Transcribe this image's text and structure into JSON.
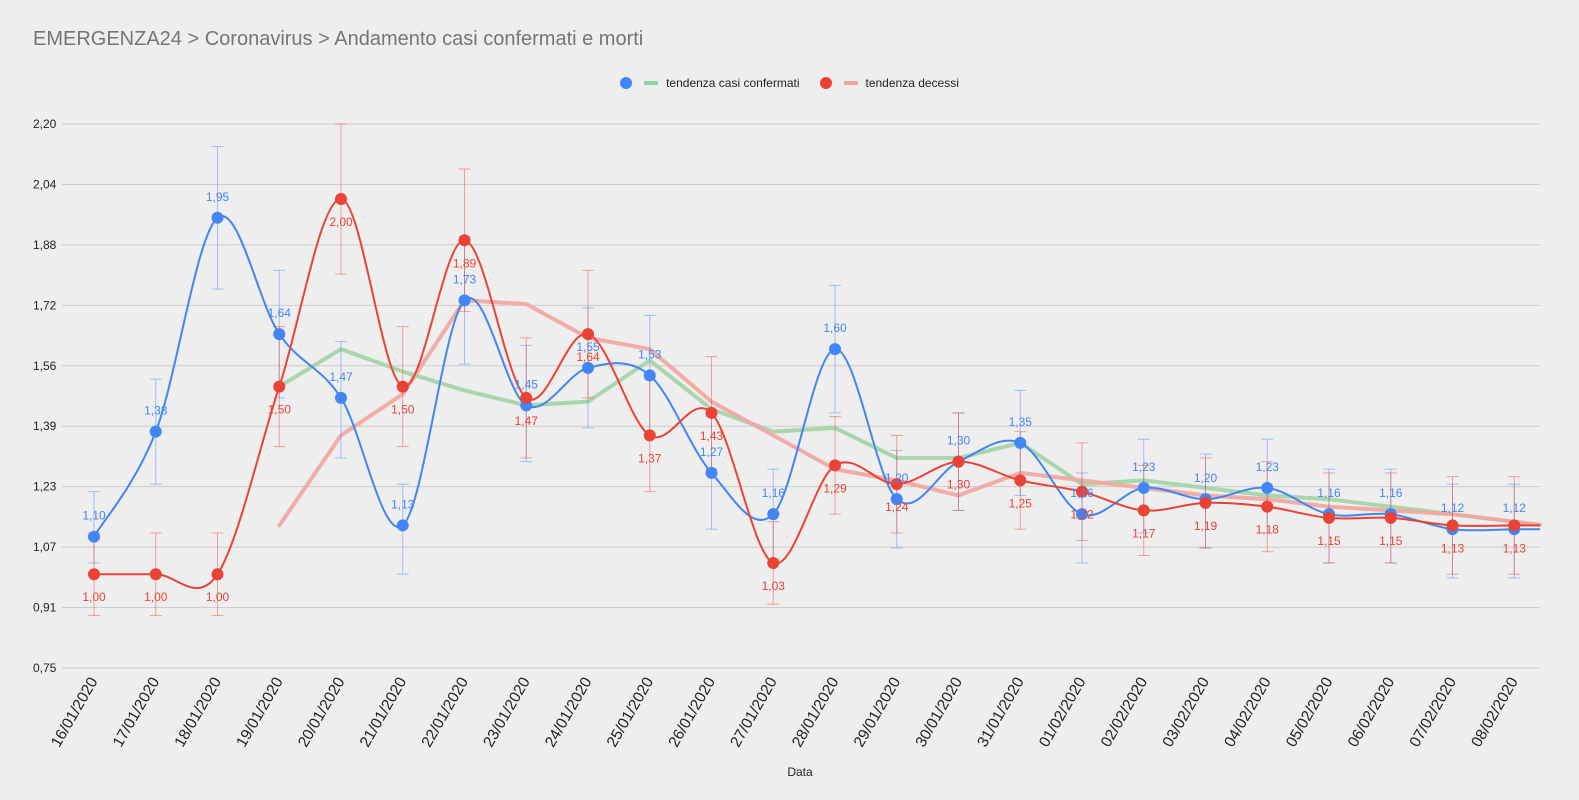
{
  "header": {
    "title": "EMERGENZA24 > Coronavirus > Andamento casi confermati e morti"
  },
  "legend": {
    "items": [
      {
        "label": "tendenza casi confermati",
        "dot_color": "#4285f4",
        "line_color": "#93cf9c"
      },
      {
        "label": "tendenza decessi",
        "dot_color": "#ea4335",
        "line_color": "#efa39c"
      }
    ]
  },
  "colors": {
    "confirmed": "#4285f4",
    "deaths": "#ea4335",
    "trend_confirmed": "#a5d4a6",
    "trend_deaths": "#f0a8a2",
    "grid": "#cccccc",
    "background": "#eeeeee"
  },
  "chart_data": {
    "type": "line",
    "title": "EMERGENZA24 > Coronavirus > Andamento casi confermati e morti",
    "xlabel": "Data",
    "ylabel": "",
    "ylim": [
      0.75,
      2.2
    ],
    "yticks": [
      "2,20",
      "2,04",
      "1,88",
      "1,72",
      "1,56",
      "1,39",
      "1,23",
      "1,07",
      "0,91",
      "0,75"
    ],
    "grid": true,
    "legend_position": "top",
    "categories": [
      "16/01/2020",
      "17/01/2020",
      "18/01/2020",
      "19/01/2020",
      "20/01/2020",
      "21/01/2020",
      "22/01/2020",
      "23/01/2020",
      "24/01/2020",
      "25/01/2020",
      "26/01/2020",
      "27/01/2020",
      "28/01/2020",
      "29/01/2020",
      "30/01/2020",
      "31/01/2020",
      "01/02/2020",
      "02/02/2020",
      "03/02/2020",
      "04/02/2020",
      "05/02/2020",
      "06/02/2020",
      "07/02/2020",
      "08/02/2020"
    ],
    "series": [
      {
        "role": "confirmed-points",
        "values": [
          1.1,
          1.38,
          1.95,
          1.64,
          1.47,
          1.13,
          1.73,
          1.45,
          1.55,
          1.53,
          1.27,
          1.16,
          1.6,
          1.2,
          1.3,
          1.35,
          1.16,
          1.23,
          1.2,
          1.23,
          1.16,
          1.16,
          1.12,
          1.12
        ],
        "labels": [
          "1,10",
          "1,38",
          "1,95",
          "1,64",
          "1,47",
          "1,13",
          "1,73",
          "1,45",
          "1,55",
          "1,53",
          "1,27",
          "1,16",
          "1,60",
          "1,20",
          "1,30",
          "1,35",
          "1,16",
          "1,23",
          "1,20",
          "1,23",
          "1,16",
          "1,16",
          "1,12",
          "1,12"
        ]
      },
      {
        "role": "deaths-points",
        "values": [
          1.0,
          1.0,
          1.0,
          1.5,
          2.0,
          1.5,
          1.89,
          1.47,
          1.64,
          1.37,
          1.43,
          1.03,
          1.29,
          1.24,
          1.3,
          1.25,
          1.22,
          1.17,
          1.19,
          1.18,
          1.15,
          1.15,
          1.13,
          1.13
        ],
        "labels": [
          "1,00",
          "1,00",
          "1,00",
          "1,50",
          "2,00",
          "1,50",
          "1,89",
          "1,47",
          "1,64",
          "1,37",
          "1,43",
          "1,03",
          "1,29",
          "1,24",
          "1,30",
          "1,25",
          "1,22",
          "1,17",
          "1,19",
          "1,18",
          "1,15",
          "1,15",
          "1,13",
          "1,13"
        ]
      },
      {
        "name": "tendenza casi confermati",
        "role": "confirmed-trend",
        "values": [
          null,
          null,
          null,
          1.5,
          1.6,
          1.54,
          1.49,
          1.45,
          1.46,
          1.57,
          1.44,
          1.38,
          1.39,
          1.31,
          1.31,
          1.35,
          1.24,
          1.25,
          1.23,
          1.21,
          1.2,
          1.18,
          1.16,
          1.14
        ]
      },
      {
        "name": "tendenza decessi",
        "role": "deaths-trend",
        "values": [
          null,
          null,
          null,
          1.13,
          1.37,
          1.48,
          1.73,
          1.72,
          1.63,
          1.6,
          1.46,
          1.37,
          1.28,
          1.25,
          1.21,
          1.27,
          1.25,
          1.23,
          1.21,
          1.2,
          1.18,
          1.17,
          1.16,
          1.14
        ]
      }
    ],
    "error_bars": {
      "confirmed": [
        [
          1.03,
          1.22
        ],
        [
          1.24,
          1.52
        ],
        [
          1.76,
          2.14
        ],
        [
          1.47,
          1.81
        ],
        [
          1.31,
          1.62
        ],
        [
          1.0,
          1.24
        ],
        [
          1.56,
          1.9
        ],
        [
          1.3,
          1.61
        ],
        [
          1.39,
          1.71
        ],
        [
          1.37,
          1.69
        ],
        [
          1.12,
          1.42
        ],
        [
          1.04,
          1.28
        ],
        [
          1.43,
          1.77
        ],
        [
          1.07,
          1.33
        ],
        [
          1.17,
          1.43
        ],
        [
          1.21,
          1.49
        ],
        [
          1.03,
          1.27
        ],
        [
          1.11,
          1.36
        ],
        [
          1.07,
          1.32
        ],
        [
          1.11,
          1.36
        ],
        [
          1.03,
          1.28
        ],
        [
          1.03,
          1.28
        ],
        [
          0.99,
          1.24
        ],
        [
          0.99,
          1.24
        ]
      ],
      "deaths": [
        [
          0.89,
          1.11
        ],
        [
          0.89,
          1.11
        ],
        [
          0.89,
          1.11
        ],
        [
          1.34,
          1.66
        ],
        [
          1.8,
          2.2
        ],
        [
          1.34,
          1.66
        ],
        [
          1.7,
          2.08
        ],
        [
          1.31,
          1.63
        ],
        [
          1.47,
          1.81
        ],
        [
          1.22,
          1.52
        ],
        [
          1.28,
          1.58
        ],
        [
          0.92,
          1.14
        ],
        [
          1.16,
          1.42
        ],
        [
          1.11,
          1.37
        ],
        [
          1.17,
          1.43
        ],
        [
          1.12,
          1.38
        ],
        [
          1.09,
          1.35
        ],
        [
          1.05,
          1.29
        ],
        [
          1.07,
          1.31
        ],
        [
          1.06,
          1.3
        ],
        [
          1.03,
          1.27
        ],
        [
          1.03,
          1.27
        ],
        [
          1.0,
          1.26
        ],
        [
          1.0,
          1.26
        ]
      ]
    }
  }
}
